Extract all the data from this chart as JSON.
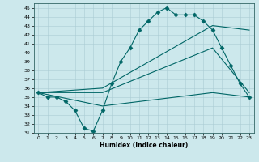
{
  "xlabel": "Humidex (Indice chaleur)",
  "background_color": "#cce8ec",
  "line_color": "#006666",
  "grid_color": "#aaccd4",
  "xlim": [
    -0.5,
    23.5
  ],
  "ylim": [
    31,
    45.5
  ],
  "yticks": [
    31,
    32,
    33,
    34,
    35,
    36,
    37,
    38,
    39,
    40,
    41,
    42,
    43,
    44,
    45
  ],
  "xticks": [
    0,
    1,
    2,
    3,
    4,
    5,
    6,
    7,
    8,
    9,
    10,
    11,
    12,
    13,
    14,
    15,
    16,
    17,
    18,
    19,
    20,
    21,
    22,
    23
  ],
  "series": [
    {
      "x": [
        0,
        1,
        2,
        3,
        4,
        5,
        6,
        7,
        8,
        9,
        10,
        11,
        12,
        13,
        14,
        15,
        16,
        17,
        18,
        19,
        20,
        21,
        22,
        23
      ],
      "y": [
        35.5,
        35.0,
        35.0,
        34.5,
        33.5,
        31.5,
        31.2,
        33.5,
        36.5,
        39.0,
        40.5,
        42.5,
        43.5,
        44.5,
        45.0,
        44.2,
        44.2,
        44.2,
        43.5,
        42.5,
        40.5,
        38.5,
        36.5,
        35.0
      ],
      "marker": "D",
      "markersize": 2.5,
      "linewidth": 0.8
    },
    {
      "x": [
        0,
        7,
        19,
        23
      ],
      "y": [
        35.5,
        36.0,
        43.0,
        42.5
      ],
      "marker": null,
      "markersize": 0,
      "linewidth": 0.8
    },
    {
      "x": [
        0,
        7,
        19,
        23
      ],
      "y": [
        35.5,
        35.5,
        40.5,
        35.5
      ],
      "marker": null,
      "markersize": 0,
      "linewidth": 0.8
    },
    {
      "x": [
        0,
        7,
        19,
        23
      ],
      "y": [
        35.5,
        34.0,
        35.5,
        35.0
      ],
      "marker": null,
      "markersize": 0,
      "linewidth": 0.8
    }
  ]
}
